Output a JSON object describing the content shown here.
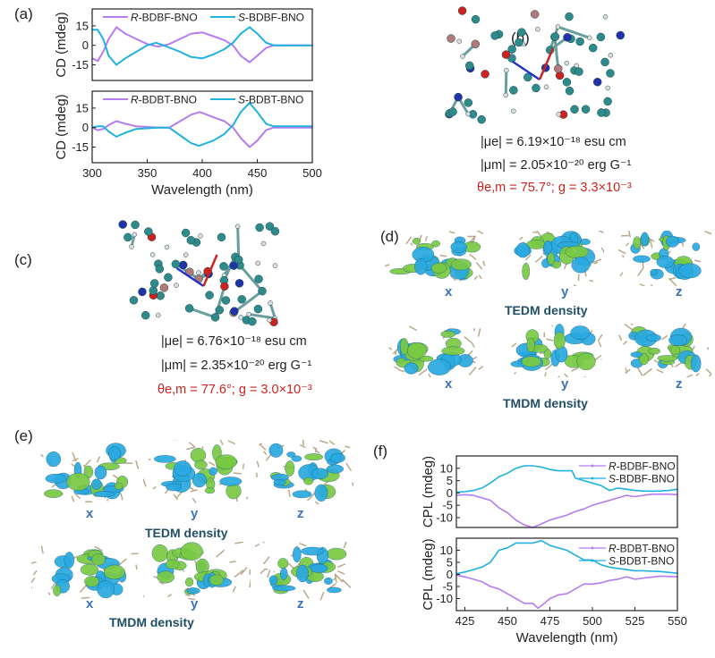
{
  "panels": {
    "a": "(a)",
    "b": "(b)",
    "c": "(c)",
    "d": "(d)",
    "e": "(e)",
    "f": "(f)"
  },
  "panel_b": {
    "mu_e": "|μe| = 6.19×10⁻¹⁸ esu cm",
    "mu_m": "|μm| = 2.05×10⁻²⁰ erg G⁻¹",
    "theta_g": "θe,m = 75.7°; g = 3.3×10⁻³"
  },
  "panel_c": {
    "mu_e": "|μe| = 6.76×10⁻¹⁸ esu cm",
    "mu_m": "|μm| = 2.35×10⁻²⁰ erg G⁻¹",
    "theta_g": "θe,m = 77.6°; g = 3.0×10⁻³"
  },
  "panel_d": {
    "axes": [
      "x",
      "y",
      "z"
    ],
    "tedm": "TEDM density",
    "tmdm": "TMDM density"
  },
  "panel_e": {
    "axes": [
      "x",
      "y",
      "z"
    ],
    "tedm": "TEDM density",
    "tmdm": "TMDM density"
  },
  "colors": {
    "R": "#b57cf0",
    "S": "#1fb1e0",
    "highlight": "#cc2222",
    "orbital_pos": "#29a9e0",
    "orbital_neg": "#7ac943"
  },
  "chart_data": [
    {
      "type": "line",
      "panel": "a-top",
      "ylabel": "CD (mdeg)",
      "xlabel": "",
      "xlim": [
        300,
        500
      ],
      "ylim": [
        -27,
        28
      ],
      "yticks": [
        15,
        0,
        -15
      ],
      "xticks": [],
      "legend": "top",
      "series": [
        {
          "name": "R-BDBF-BNO",
          "prefix": "R",
          "suffix": "-BDBF-BNO",
          "color": "#b57cf0",
          "x": [
            300,
            305,
            310,
            315,
            322,
            330,
            340,
            350,
            360,
            370,
            380,
            390,
            400,
            410,
            420,
            428,
            435,
            443,
            450,
            458,
            465,
            500
          ],
          "y": [
            -10,
            -12,
            -5,
            5,
            14,
            9,
            5,
            1,
            -1,
            1,
            5,
            9,
            10,
            7,
            4,
            0,
            -8,
            -13,
            -8,
            -2,
            0,
            0
          ]
        },
        {
          "name": "S-BDBF-BNO",
          "prefix": "S",
          "suffix": "-BDBF-BNO",
          "color": "#1fb1e0",
          "x": [
            300,
            305,
            310,
            315,
            322,
            330,
            340,
            350,
            358,
            365,
            380,
            390,
            400,
            410,
            420,
            428,
            435,
            443,
            450,
            458,
            465,
            500
          ],
          "y": [
            12,
            12,
            5,
            -8,
            -15,
            -10,
            -5,
            0,
            2,
            0,
            -5,
            -9,
            -10,
            -7,
            -3,
            2,
            9,
            14,
            9,
            2,
            0,
            0
          ]
        }
      ]
    },
    {
      "type": "line",
      "panel": "a-bottom",
      "ylabel": "CD (mdeg)",
      "xlabel": "Wavelength (nm)",
      "xlim": [
        300,
        500
      ],
      "ylim": [
        -27,
        28
      ],
      "yticks": [
        15,
        0,
        -15
      ],
      "xticks": [
        300,
        350,
        400,
        450,
        500
      ],
      "legend": "top",
      "series": [
        {
          "name": "R-BDBT-BNO",
          "prefix": "R",
          "suffix": "-BDBT-BNO",
          "color": "#b57cf0",
          "x": [
            300,
            305,
            310,
            315,
            322,
            330,
            340,
            360,
            370,
            380,
            390,
            398,
            410,
            420,
            428,
            435,
            443,
            450,
            458,
            465,
            500
          ],
          "y": [
            0,
            -2,
            -1,
            2,
            5,
            3,
            1,
            0,
            0,
            5,
            10,
            12,
            8,
            5,
            0,
            -8,
            -15,
            -10,
            -2,
            0,
            0
          ]
        },
        {
          "name": "S-BDBT-BNO",
          "prefix": "S",
          "suffix": "-BDBT-BNO",
          "color": "#1fb1e0",
          "x": [
            300,
            305,
            310,
            315,
            322,
            330,
            340,
            360,
            370,
            380,
            390,
            397,
            410,
            420,
            428,
            435,
            443,
            450,
            458,
            465,
            500
          ],
          "y": [
            0,
            1,
            1,
            -3,
            -7,
            -4,
            -1,
            0,
            0,
            -6,
            -12,
            -14,
            -10,
            -5,
            2,
            12,
            19,
            12,
            3,
            1,
            1
          ]
        }
      ]
    },
    {
      "type": "line",
      "panel": "f-top",
      "ylabel": "CPL (mdeg)",
      "xlabel": "",
      "xlim": [
        420,
        550
      ],
      "ylim": [
        -14,
        15
      ],
      "yticks": [
        10,
        5,
        0,
        -5,
        -10
      ],
      "xticks": [],
      "legend": "top-right",
      "series": [
        {
          "name": "R-BDBF-BNO",
          "prefix": "R",
          "suffix": "-BDBF-BNO",
          "color": "#b57cf0",
          "x": [
            420,
            425,
            430,
            435,
            440,
            445,
            450,
            455,
            460,
            465,
            470,
            475,
            480,
            485,
            490,
            495,
            500,
            505,
            510,
            515,
            520,
            525,
            530,
            535,
            540,
            545,
            550
          ],
          "y": [
            -1,
            -0.7,
            -1,
            -2,
            -3,
            -6,
            -8,
            -11,
            -13,
            -14,
            -12.5,
            -11,
            -10,
            -9,
            -7.5,
            -6.5,
            -5,
            -4,
            -3,
            -2,
            -1,
            -1.5,
            -1,
            -0.5,
            -0.5,
            -0.5,
            -0.7
          ]
        },
        {
          "name": "S-BDBF-BNO",
          "prefix": "S",
          "suffix": "-BDBF-BNO",
          "color": "#1fb1e0",
          "x": [
            420,
            425,
            430,
            435,
            440,
            445,
            450,
            455,
            460,
            465,
            470,
            475,
            480,
            485,
            488,
            490,
            495,
            500,
            505,
            510,
            515,
            520,
            525,
            530,
            535,
            540,
            545,
            550
          ],
          "y": [
            0.3,
            0.5,
            1,
            2,
            4,
            6.5,
            8,
            10,
            11,
            11,
            10.5,
            9.5,
            9,
            9,
            9,
            6,
            5,
            4,
            3,
            1,
            2,
            1.5,
            1,
            0.8,
            0.7,
            0.8,
            1,
            1.5
          ]
        }
      ]
    },
    {
      "type": "line",
      "panel": "f-bottom",
      "ylabel": "CPL (mdeg)",
      "xlabel": "Wavelength (nm)",
      "xlim": [
        420,
        550
      ],
      "ylim": [
        -15,
        15
      ],
      "yticks": [
        10,
        5,
        0,
        -5,
        -10
      ],
      "xticks": [
        425,
        450,
        475,
        500,
        525,
        550
      ],
      "legend": "top-right",
      "series": [
        {
          "name": "R-BDBT-BNO",
          "prefix": "R",
          "suffix": "-BDBT-BNO",
          "color": "#b57cf0",
          "x": [
            420,
            425,
            430,
            435,
            440,
            445,
            450,
            455,
            460,
            465,
            468,
            470,
            475,
            480,
            485,
            490,
            495,
            500,
            505,
            510,
            515,
            520,
            525,
            530,
            540,
            550
          ],
          "y": [
            -0.3,
            -1,
            -2,
            -3,
            -5,
            -6,
            -8,
            -10,
            -12,
            -12,
            -14,
            -13,
            -10,
            -8.5,
            -8,
            -6,
            -4,
            -4,
            -3.5,
            -2.5,
            -2,
            -1,
            -2,
            -1.5,
            -0.7,
            -1
          ]
        },
        {
          "name": "S-BDBT-BNO",
          "prefix": "S",
          "suffix": "-BDBT-BNO",
          "color": "#1fb1e0",
          "x": [
            420,
            425,
            430,
            435,
            440,
            445,
            450,
            455,
            460,
            465,
            470,
            475,
            480,
            485,
            490,
            495,
            500,
            505,
            510,
            515,
            520,
            525,
            530,
            540,
            550
          ],
          "y": [
            0.3,
            1,
            2,
            3,
            5,
            10,
            11,
            13,
            13,
            13,
            14,
            12,
            11,
            10,
            8,
            6,
            6,
            4,
            3,
            2.5,
            2,
            1.5,
            1.5,
            1.2,
            0.5
          ]
        }
      ]
    }
  ]
}
